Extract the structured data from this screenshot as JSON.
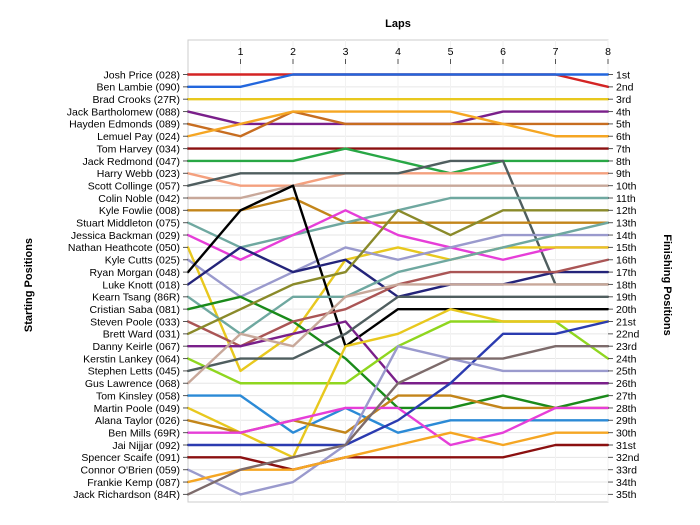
{
  "chart_data": {
    "type": "line",
    "subtype": "bump",
    "title": "",
    "xlabel": "Laps",
    "ylabel_left": "Starting Positions",
    "ylabel_right": "Finishing Positions",
    "x": [
      0,
      1,
      2,
      3,
      4,
      5,
      6,
      7,
      8
    ],
    "x_tick_labels": [
      "1",
      "2",
      "3",
      "4",
      "5",
      "6",
      "7",
      "8"
    ],
    "y_range": [
      1,
      35
    ],
    "y_inverted": true,
    "grid": "horizontal",
    "finish_labels": [
      "1st",
      "2nd",
      "3rd",
      "4th",
      "5th",
      "6th",
      "7th",
      "8th",
      "9th",
      "10th",
      "11th",
      "12th",
      "13th",
      "14th",
      "15th",
      "16th",
      "17th",
      "18th",
      "19th",
      "20th",
      "21st",
      "22nd",
      "23rd",
      "24th",
      "25th",
      "26th",
      "27th",
      "28th",
      "29th",
      "30th",
      "31st",
      "32nd",
      "33rd",
      "34th",
      "35th"
    ],
    "series": [
      {
        "name": "Josh Price (028)",
        "color": "#d42424",
        "values": [
          1,
          1,
          1,
          1,
          1,
          1,
          1,
          1,
          2
        ]
      },
      {
        "name": "Ben Lambie (090)",
        "color": "#2266dd",
        "values": [
          2,
          2,
          1,
          1,
          1,
          1,
          1,
          1,
          1
        ]
      },
      {
        "name": "Brad Crooks (27R)",
        "color": "#e8c81e",
        "values": [
          3,
          3,
          3,
          3,
          3,
          3,
          3,
          3,
          3
        ]
      },
      {
        "name": "Jack Bartholomew (088)",
        "color": "#7a1f8a",
        "values": [
          4,
          5,
          5,
          5,
          5,
          5,
          4,
          4,
          4
        ]
      },
      {
        "name": "Hayden Edmonds (089)",
        "color": "#c76d20",
        "values": [
          5,
          6,
          4,
          5,
          5,
          5,
          5,
          5,
          5
        ]
      },
      {
        "name": "Lemuel Pay (024)",
        "color": "#f5a623",
        "values": [
          6,
          5,
          4,
          4,
          4,
          4,
          5,
          6,
          6
        ]
      },
      {
        "name": "Tom Harvey (034)",
        "color": "#8b1010",
        "values": [
          7,
          7,
          7,
          7,
          7,
          7,
          7,
          7,
          7
        ]
      },
      {
        "name": "Jack Redmond (047)",
        "color": "#28a745",
        "values": [
          8,
          8,
          8,
          7,
          8,
          9,
          8,
          8,
          8
        ]
      },
      {
        "name": "Harry Webb (023)",
        "color": "#f4a07e",
        "values": [
          9,
          10,
          10,
          9,
          9,
          9,
          9,
          9,
          9
        ]
      },
      {
        "name": "Scott Collinge (057)",
        "color": "#4f5e5f",
        "values": [
          10,
          9,
          9,
          9,
          9,
          8,
          8,
          18,
          18
        ]
      },
      {
        "name": "Colin Noble (042)",
        "color": "#c8a89a",
        "values": [
          11,
          11,
          10,
          10,
          10,
          10,
          10,
          10,
          10
        ]
      },
      {
        "name": "Kyle Fowlie (008)",
        "color": "#c3851a",
        "values": [
          12,
          12,
          11,
          13,
          13,
          13,
          13,
          13,
          13
        ]
      },
      {
        "name": "Stuart Middleton (075)",
        "color": "#6fa8a0",
        "values": [
          13,
          15,
          14,
          13,
          12,
          11,
          11,
          11,
          11
        ]
      },
      {
        "name": "Jessica Backman (029)",
        "color": "#e63ed8",
        "values": [
          14,
          16,
          14,
          12,
          14,
          15,
          16,
          15,
          15
        ]
      },
      {
        "name": "Nathan Heathcote (050)",
        "color": "#e8c81e",
        "values": [
          15,
          25,
          22,
          16,
          15,
          16,
          15,
          15,
          15
        ]
      },
      {
        "name": "Kyle Cutts (025)",
        "color": "#9a9acd",
        "values": [
          16,
          19,
          17,
          15,
          16,
          15,
          14,
          14,
          14
        ]
      },
      {
        "name": "Ryan Morgan (048)",
        "color": "#000000",
        "values": [
          17,
          12,
          10,
          23,
          20,
          20,
          20,
          20,
          20
        ]
      },
      {
        "name": "Luke Knott (018)",
        "color": "#24247a",
        "values": [
          18,
          15,
          17,
          16,
          19,
          18,
          18,
          17,
          17
        ]
      },
      {
        "name": "Kearn Tsang (86R)",
        "color": "#6fa8a0",
        "values": [
          19,
          22,
          19,
          19,
          17,
          16,
          15,
          14,
          13
        ]
      },
      {
        "name": "Cristian Saba (081)",
        "color": "#1a8a1a",
        "values": [
          20,
          19,
          21,
          24,
          28,
          28,
          27,
          28,
          27
        ]
      },
      {
        "name": "Steven Poole (033)",
        "color": "#aa5555",
        "values": [
          21,
          23,
          21,
          20,
          18,
          17,
          17,
          17,
          16
        ]
      },
      {
        "name": "Brett Ward (031)",
        "color": "#8a8a2a",
        "values": [
          22,
          20,
          18,
          17,
          12,
          14,
          12,
          12,
          12
        ]
      },
      {
        "name": "Danny Keirle (067)",
        "color": "#7a1f8a",
        "values": [
          23,
          23,
          22,
          21,
          26,
          26,
          26,
          26,
          26
        ]
      },
      {
        "name": "Kerstin Lankey (064)",
        "color": "#8fd61f",
        "values": [
          24,
          26,
          26,
          26,
          23,
          21,
          21,
          21,
          24
        ]
      },
      {
        "name": "Stephen Letts (045)",
        "color": "#4f5e5f",
        "values": [
          25,
          24,
          24,
          22,
          19,
          19,
          19,
          19,
          19
        ]
      },
      {
        "name": "Gus Lawrence (068)",
        "color": "#c8a89a",
        "values": [
          26,
          22,
          23,
          19,
          18,
          18,
          18,
          18,
          18
        ]
      },
      {
        "name": "Tom Kinsley (058)",
        "color": "#2b8ad6",
        "values": [
          27,
          27,
          30,
          28,
          30,
          29,
          29,
          29,
          29
        ]
      },
      {
        "name": "Martin Poole (049)",
        "color": "#e8c81e",
        "values": [
          28,
          30,
          32,
          23,
          22,
          20,
          21,
          21,
          21
        ]
      },
      {
        "name": "Alana Taylor (026)",
        "color": "#c3851a",
        "values": [
          29,
          30,
          29,
          30,
          27,
          27,
          28,
          28,
          28
        ]
      },
      {
        "name": "Ben Mills (69R)",
        "color": "#e63ed8",
        "values": [
          30,
          30,
          29,
          28,
          28,
          31,
          30,
          28,
          28
        ]
      },
      {
        "name": "Jai Nijjar (092)",
        "color": "#2b3bb0",
        "values": [
          31,
          31,
          31,
          31,
          29,
          26,
          22,
          22,
          21
        ]
      },
      {
        "name": "Spencer Scaife (091)",
        "color": "#8b1010",
        "values": [
          32,
          32,
          33,
          32,
          32,
          32,
          32,
          31,
          31
        ]
      },
      {
        "name": "Connor O'Brien (059)",
        "color": "#9a9acd",
        "values": [
          33,
          35,
          34,
          31,
          23,
          24,
          25,
          25,
          25
        ]
      },
      {
        "name": "Frankie Kemp (087)",
        "color": "#f5a623",
        "values": [
          34,
          33,
          33,
          32,
          31,
          30,
          31,
          30,
          30
        ]
      },
      {
        "name": "Jack Richardson (84R)",
        "color": "#7d6b6b",
        "values": [
          35,
          33,
          32,
          31,
          26,
          24,
          24,
          23,
          23
        ]
      }
    ]
  }
}
